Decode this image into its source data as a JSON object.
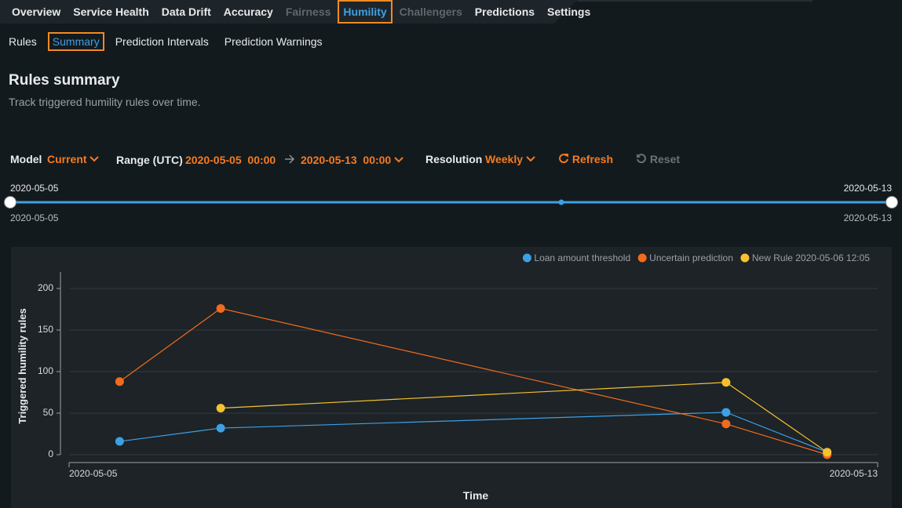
{
  "nav": {
    "tabs": [
      "Overview",
      "Service Health",
      "Data Drift",
      "Accuracy",
      "Fairness",
      "Humility",
      "Challengers",
      "Predictions",
      "Settings"
    ],
    "active_tab": 5,
    "disabled_tabs": [
      4,
      6
    ]
  },
  "subnav": {
    "tabs": [
      "Rules",
      "Summary",
      "Prediction Intervals",
      "Prediction Warnings"
    ],
    "active_tab": 1
  },
  "header": {
    "title": "Rules summary",
    "subtitle": "Track triggered humility rules over time."
  },
  "controls": {
    "model_label": "Model",
    "model_value": "Current",
    "range_label": "Range (UTC)",
    "range_start_date": "2020-05-05",
    "range_start_time": "00:00",
    "range_end_date": "2020-05-13",
    "range_end_time": "00:00",
    "resolution_label": "Resolution",
    "resolution_value": "Weekly",
    "refresh": "Refresh",
    "reset": "Reset"
  },
  "slider": {
    "top_start": "2020-05-05",
    "top_end": "2020-05-13",
    "bottom_start": "2020-05-05",
    "bottom_end": "2020-05-13"
  },
  "chart_data": {
    "type": "line",
    "x_label": "Time",
    "y_label": "Triggered humility rules",
    "x": [
      "2020-05-05",
      "2020-05-06",
      "2020-05-11",
      "2020-05-12"
    ],
    "xlim": [
      "2020-05-05",
      "2020-05-13"
    ],
    "xticks": [
      "2020-05-05",
      "2020-05-13"
    ],
    "ylim": [
      0,
      220
    ],
    "yticks": [
      0,
      50,
      100,
      150,
      200
    ],
    "grid": true,
    "legend": "top-right",
    "series": [
      {
        "name": "Loan amount threshold",
        "color": "#3ea0e4",
        "values": [
          16,
          32,
          51,
          3
        ]
      },
      {
        "name": "Uncertain prediction",
        "color": "#f26b1d",
        "values": [
          88,
          176,
          37,
          0
        ]
      },
      {
        "name": "New Rule 2020-05-06 12:05",
        "color": "#f5c22f",
        "values": [
          null,
          56,
          87,
          3
        ]
      }
    ]
  }
}
